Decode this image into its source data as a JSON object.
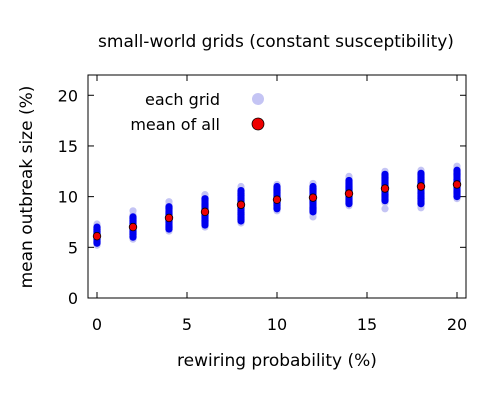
{
  "chart_data": {
    "type": "scatter",
    "title": "small-world grids (constant susceptibility)",
    "xlabel": "rewiring probability (%)",
    "ylabel": "mean outbreak size (%)",
    "xlim": [
      -0.5,
      20.5
    ],
    "ylim": [
      0,
      22
    ],
    "xticks": [
      0,
      5,
      10,
      15,
      20
    ],
    "yticks": [
      0,
      5,
      10,
      15,
      20
    ],
    "grid": false,
    "legend_position": "top-left",
    "series": [
      {
        "name": "each grid",
        "color": "#0000ee",
        "faint_color": "#c4c4f4",
        "marker": "circle",
        "groups": [
          {
            "x": 0,
            "ymin": 5.4,
            "ymax": 7.0,
            "outliers": [
              7.3
            ]
          },
          {
            "x": 2,
            "ymin": 6.0,
            "ymax": 8.0,
            "outliers": [
              8.6
            ]
          },
          {
            "x": 4,
            "ymin": 6.8,
            "ymax": 9.0,
            "outliers": [
              9.5
            ]
          },
          {
            "x": 6,
            "ymin": 7.2,
            "ymax": 9.8,
            "outliers": [
              10.2
            ]
          },
          {
            "x": 8,
            "ymin": 7.6,
            "ymax": 10.6,
            "outliers": [
              11.0
            ]
          },
          {
            "x": 10,
            "ymin": 8.8,
            "ymax": 11.0,
            "outliers": [
              11.2
            ]
          },
          {
            "x": 12,
            "ymin": 8.5,
            "ymax": 11.0,
            "outliers": [
              8.0,
              11.3
            ]
          },
          {
            "x": 14,
            "ymin": 9.3,
            "ymax": 11.6,
            "outliers": [
              12.0
            ]
          },
          {
            "x": 16,
            "ymin": 9.6,
            "ymax": 12.2,
            "outliers": [
              8.8,
              12.5
            ]
          },
          {
            "x": 18,
            "ymin": 9.3,
            "ymax": 12.3,
            "outliers": [
              8.9,
              12.6
            ]
          },
          {
            "x": 20,
            "ymin": 10.0,
            "ymax": 12.6,
            "outliers": [
              13.0
            ]
          }
        ]
      },
      {
        "name": "mean of all",
        "color": "#ee0000",
        "marker": "circle",
        "points": [
          {
            "x": 0,
            "y": 6.1
          },
          {
            "x": 2,
            "y": 7.0
          },
          {
            "x": 4,
            "y": 7.9
          },
          {
            "x": 6,
            "y": 8.5
          },
          {
            "x": 8,
            "y": 9.2
          },
          {
            "x": 10,
            "y": 9.7
          },
          {
            "x": 12,
            "y": 9.9
          },
          {
            "x": 14,
            "y": 10.3
          },
          {
            "x": 16,
            "y": 10.8
          },
          {
            "x": 18,
            "y": 11.0
          },
          {
            "x": 20,
            "y": 11.2
          }
        ]
      }
    ]
  }
}
